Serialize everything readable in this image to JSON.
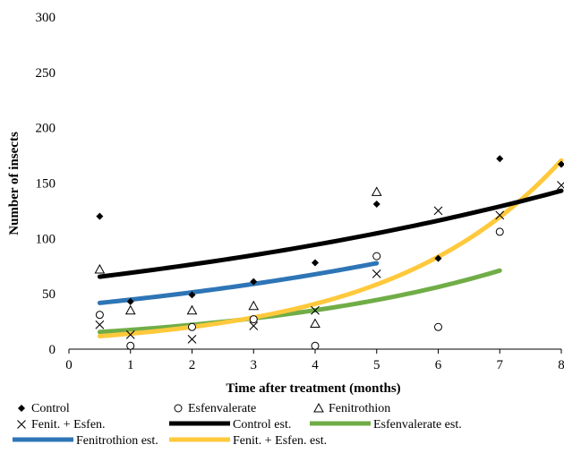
{
  "chart_data": {
    "type": "scatter",
    "title": "",
    "xlabel": "Time after treatment (months)",
    "ylabel": "Number of insects",
    "xlim": [
      0,
      8
    ],
    "ylim": [
      0,
      300
    ],
    "xticks": [
      0,
      1,
      2,
      3,
      4,
      5,
      6,
      7,
      8
    ],
    "yticks": [
      0,
      50,
      100,
      150,
      200,
      250,
      300
    ],
    "grid": false,
    "legend_position": "bottom",
    "legend": [
      "Control",
      "Esfenvalerate",
      "Fenitrothion",
      "Fenit. + Esfen.",
      "Control est.",
      "Esfenvalerate est.",
      "Fenitrothion est.",
      "Fenit. + Esfen. est."
    ],
    "series": [
      {
        "name": "Control",
        "marker": "diamond",
        "color": "#000000",
        "x": [
          0.5,
          1,
          2,
          3,
          4,
          5,
          6,
          7,
          8
        ],
        "y": [
          120,
          43,
          49,
          61,
          78,
          131,
          82,
          172,
          167
        ]
      },
      {
        "name": "Esfenvalerate",
        "marker": "circle",
        "color": "#000000",
        "x": [
          0.5,
          1,
          2,
          3,
          4,
          5,
          6,
          7
        ],
        "y": [
          31,
          3,
          20,
          27,
          3,
          84,
          20,
          106
        ]
      },
      {
        "name": "Fenitrothion",
        "marker": "triangle",
        "color": "#000000",
        "x": [
          0.5,
          1,
          2,
          3,
          4,
          5
        ],
        "y": [
          72,
          35,
          35,
          39,
          23,
          142
        ]
      },
      {
        "name": "Fenit. + Esfen.",
        "marker": "x",
        "color": "#000000",
        "x": [
          0.5,
          1,
          2,
          3,
          4,
          5,
          6,
          7,
          8
        ],
        "y": [
          22,
          13,
          9,
          21,
          35,
          68,
          125,
          121,
          148
        ]
      }
    ],
    "fits": [
      {
        "name": "Control est.",
        "color": "#000000",
        "x_range": [
          0.5,
          8
        ],
        "a": 62.1,
        "b": 0.1043
      },
      {
        "name": "Esfenvalerate est.",
        "color": "#70AD47",
        "x_range": [
          0.5,
          7
        ],
        "a": 13.76,
        "b": 0.2344
      },
      {
        "name": "Fenitrothion est.",
        "color": "#2E75B6",
        "x_range": [
          0.5,
          5
        ],
        "a": 38.94,
        "b": 0.138
      },
      {
        "name": "Fenit. + Esfen. est.",
        "color": "#FFC93C",
        "x_range": [
          0.5,
          8
        ],
        "a": 9.8,
        "b": 0.357
      }
    ]
  }
}
